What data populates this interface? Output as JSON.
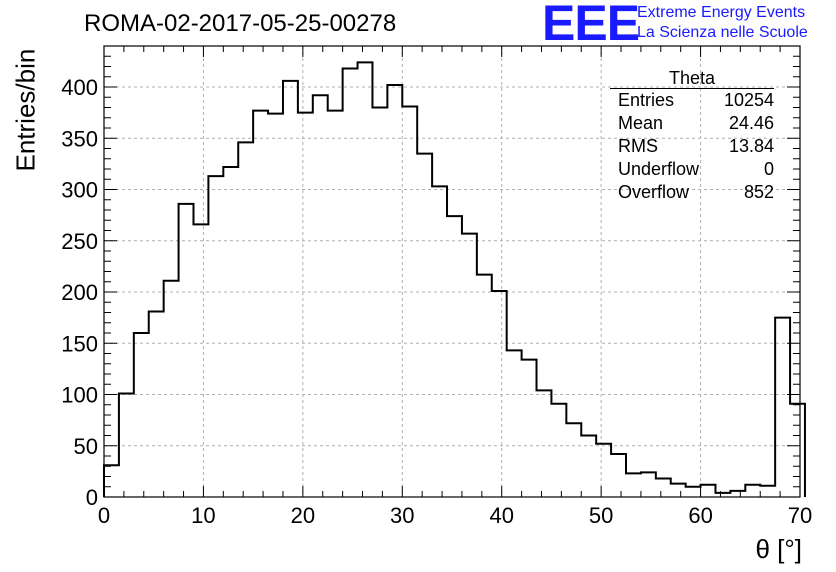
{
  "title": "ROMA-02-2017-05-25-00278",
  "logo": {
    "mark": "EEE",
    "line1": "Extreme Energy Events",
    "line2": "La Scienza nelle Scuole",
    "color": "#1a1aff"
  },
  "stats": {
    "title": "Theta",
    "rows": [
      {
        "label": "Entries",
        "value": "10254"
      },
      {
        "label": "Mean",
        "value": "24.46"
      },
      {
        "label": "RMS",
        "value": "13.84"
      },
      {
        "label": "Underflow",
        "value": "0"
      },
      {
        "label": "Overflow",
        "value": "852"
      }
    ]
  },
  "chart_data": {
    "type": "histogram",
    "title": "ROMA-02-2017-05-25-00278",
    "xlabel": "θ [°]",
    "ylabel": "Entries/bin",
    "xlim": [
      0,
      70
    ],
    "ylim": [
      0,
      440
    ],
    "bin_width": 1.5,
    "x_ticks": [
      0,
      10,
      20,
      30,
      40,
      50,
      60,
      70
    ],
    "y_ticks": [
      0,
      50,
      100,
      150,
      200,
      250,
      300,
      350,
      400
    ],
    "grid": true,
    "line_color": "#000000",
    "bins": [
      [
        0.0,
        31
      ],
      [
        1.5,
        101
      ],
      [
        3.0,
        160
      ],
      [
        4.5,
        181
      ],
      [
        6.0,
        211
      ],
      [
        7.5,
        286
      ],
      [
        9.0,
        266
      ],
      [
        10.5,
        313
      ],
      [
        12.0,
        322
      ],
      [
        13.5,
        346
      ],
      [
        15.0,
        377
      ],
      [
        16.5,
        374
      ],
      [
        18.0,
        406
      ],
      [
        19.5,
        375
      ],
      [
        21.0,
        392
      ],
      [
        22.5,
        377
      ],
      [
        24.0,
        418
      ],
      [
        25.5,
        424
      ],
      [
        27.0,
        380
      ],
      [
        28.5,
        402
      ],
      [
        30.0,
        381
      ],
      [
        31.5,
        335
      ],
      [
        33.0,
        303
      ],
      [
        34.5,
        274
      ],
      [
        36.0,
        257
      ],
      [
        37.5,
        217
      ],
      [
        39.0,
        201
      ],
      [
        40.5,
        143
      ],
      [
        42.0,
        134
      ],
      [
        43.5,
        104
      ],
      [
        45.0,
        91
      ],
      [
        46.5,
        72
      ],
      [
        48.0,
        60
      ],
      [
        49.5,
        52
      ],
      [
        51.0,
        42
      ],
      [
        52.5,
        23
      ],
      [
        54.0,
        24
      ],
      [
        55.5,
        18
      ],
      [
        57.0,
        13
      ],
      [
        58.5,
        10
      ],
      [
        60.0,
        12
      ],
      [
        61.5,
        4
      ],
      [
        63.0,
        6
      ],
      [
        64.5,
        12
      ],
      [
        66.0,
        11
      ],
      [
        67.5,
        175
      ],
      [
        69.0,
        91
      ]
    ]
  }
}
